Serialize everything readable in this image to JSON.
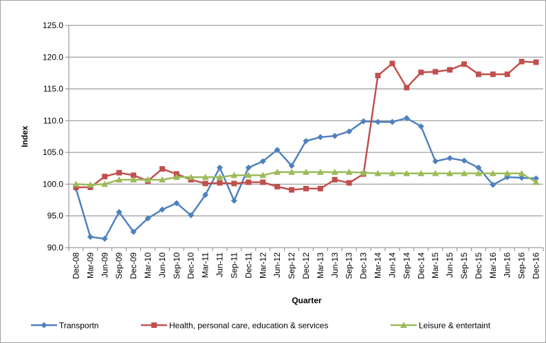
{
  "chart_data": {
    "type": "line",
    "y_label": "Index",
    "x_label": "Quarter",
    "categories": [
      "Dec-08",
      "Mar-09",
      "Jun-09",
      "Sep-09",
      "Dec-09",
      "Mar-10",
      "Jun-10",
      "Sep-10",
      "Dec-10",
      "Mar-11",
      "Jun-11",
      "Sep-11",
      "Dec-11",
      "Mar-12",
      "Jun-12",
      "Sep-12",
      "Dec-12",
      "Mar-13",
      "Jun-13",
      "Sep-13",
      "Dec-13",
      "Mar-14",
      "Jun-14",
      "Sep-14",
      "Dec-14",
      "Mar-15",
      "Jun-15",
      "Sep-15",
      "Dec-15",
      "Mar-16",
      "Jun-16",
      "Sep-16",
      "Dec-16"
    ],
    "series": [
      {
        "name": "Transportn",
        "color": "#4f81bd",
        "marker": "diamond",
        "values": [
          99.3,
          91.7,
          91.4,
          95.6,
          92.5,
          94.6,
          96.0,
          97.0,
          95.1,
          98.3,
          102.6,
          97.4,
          102.6,
          103.6,
          105.4,
          102.9,
          106.8,
          107.4,
          107.6,
          108.3,
          109.9,
          109.8,
          109.8,
          110.4,
          109.1,
          103.6,
          104.1,
          103.7,
          102.6,
          99.9,
          101.1,
          101.0,
          100.9
        ]
      },
      {
        "name": "Health, personal care, education & services",
        "color": "#c0504d",
        "marker": "square",
        "values": [
          99.5,
          99.5,
          101.2,
          101.8,
          101.4,
          100.5,
          102.4,
          101.6,
          100.7,
          100.1,
          100.2,
          100.1,
          100.3,
          100.3,
          99.6,
          99.1,
          99.3,
          99.3,
          100.7,
          100.2,
          101.6,
          117.1,
          119.0,
          115.2,
          117.6,
          117.7,
          118.0,
          118.9,
          117.3,
          117.3,
          117.3,
          119.3,
          119.2
        ]
      },
      {
        "name": "Leisure & entertaint",
        "color": "#9bbb59",
        "marker": "triangle",
        "values": [
          100.0,
          99.9,
          100.0,
          100.7,
          100.7,
          100.7,
          100.7,
          101.1,
          101.1,
          101.1,
          101.1,
          101.4,
          101.4,
          101.4,
          101.9,
          101.9,
          101.9,
          101.9,
          101.9,
          101.9,
          101.8,
          101.7,
          101.7,
          101.7,
          101.7,
          101.7,
          101.7,
          101.7,
          101.7,
          101.7,
          101.7,
          101.7,
          100.3
        ]
      }
    ],
    "ylim": [
      90,
      125
    ],
    "yticks": [
      {
        "value": 90,
        "label": "90.0"
      },
      {
        "value": 95,
        "label": "95.0"
      },
      {
        "value": 100,
        "label": "100.0"
      },
      {
        "value": 105,
        "label": "105.0"
      },
      {
        "value": 110,
        "label": "110.0"
      },
      {
        "value": 115,
        "label": "115.0"
      },
      {
        "value": 120,
        "label": "120.0"
      },
      {
        "value": 125,
        "label": "125.0"
      }
    ],
    "grid": true,
    "legend": "bottom"
  }
}
